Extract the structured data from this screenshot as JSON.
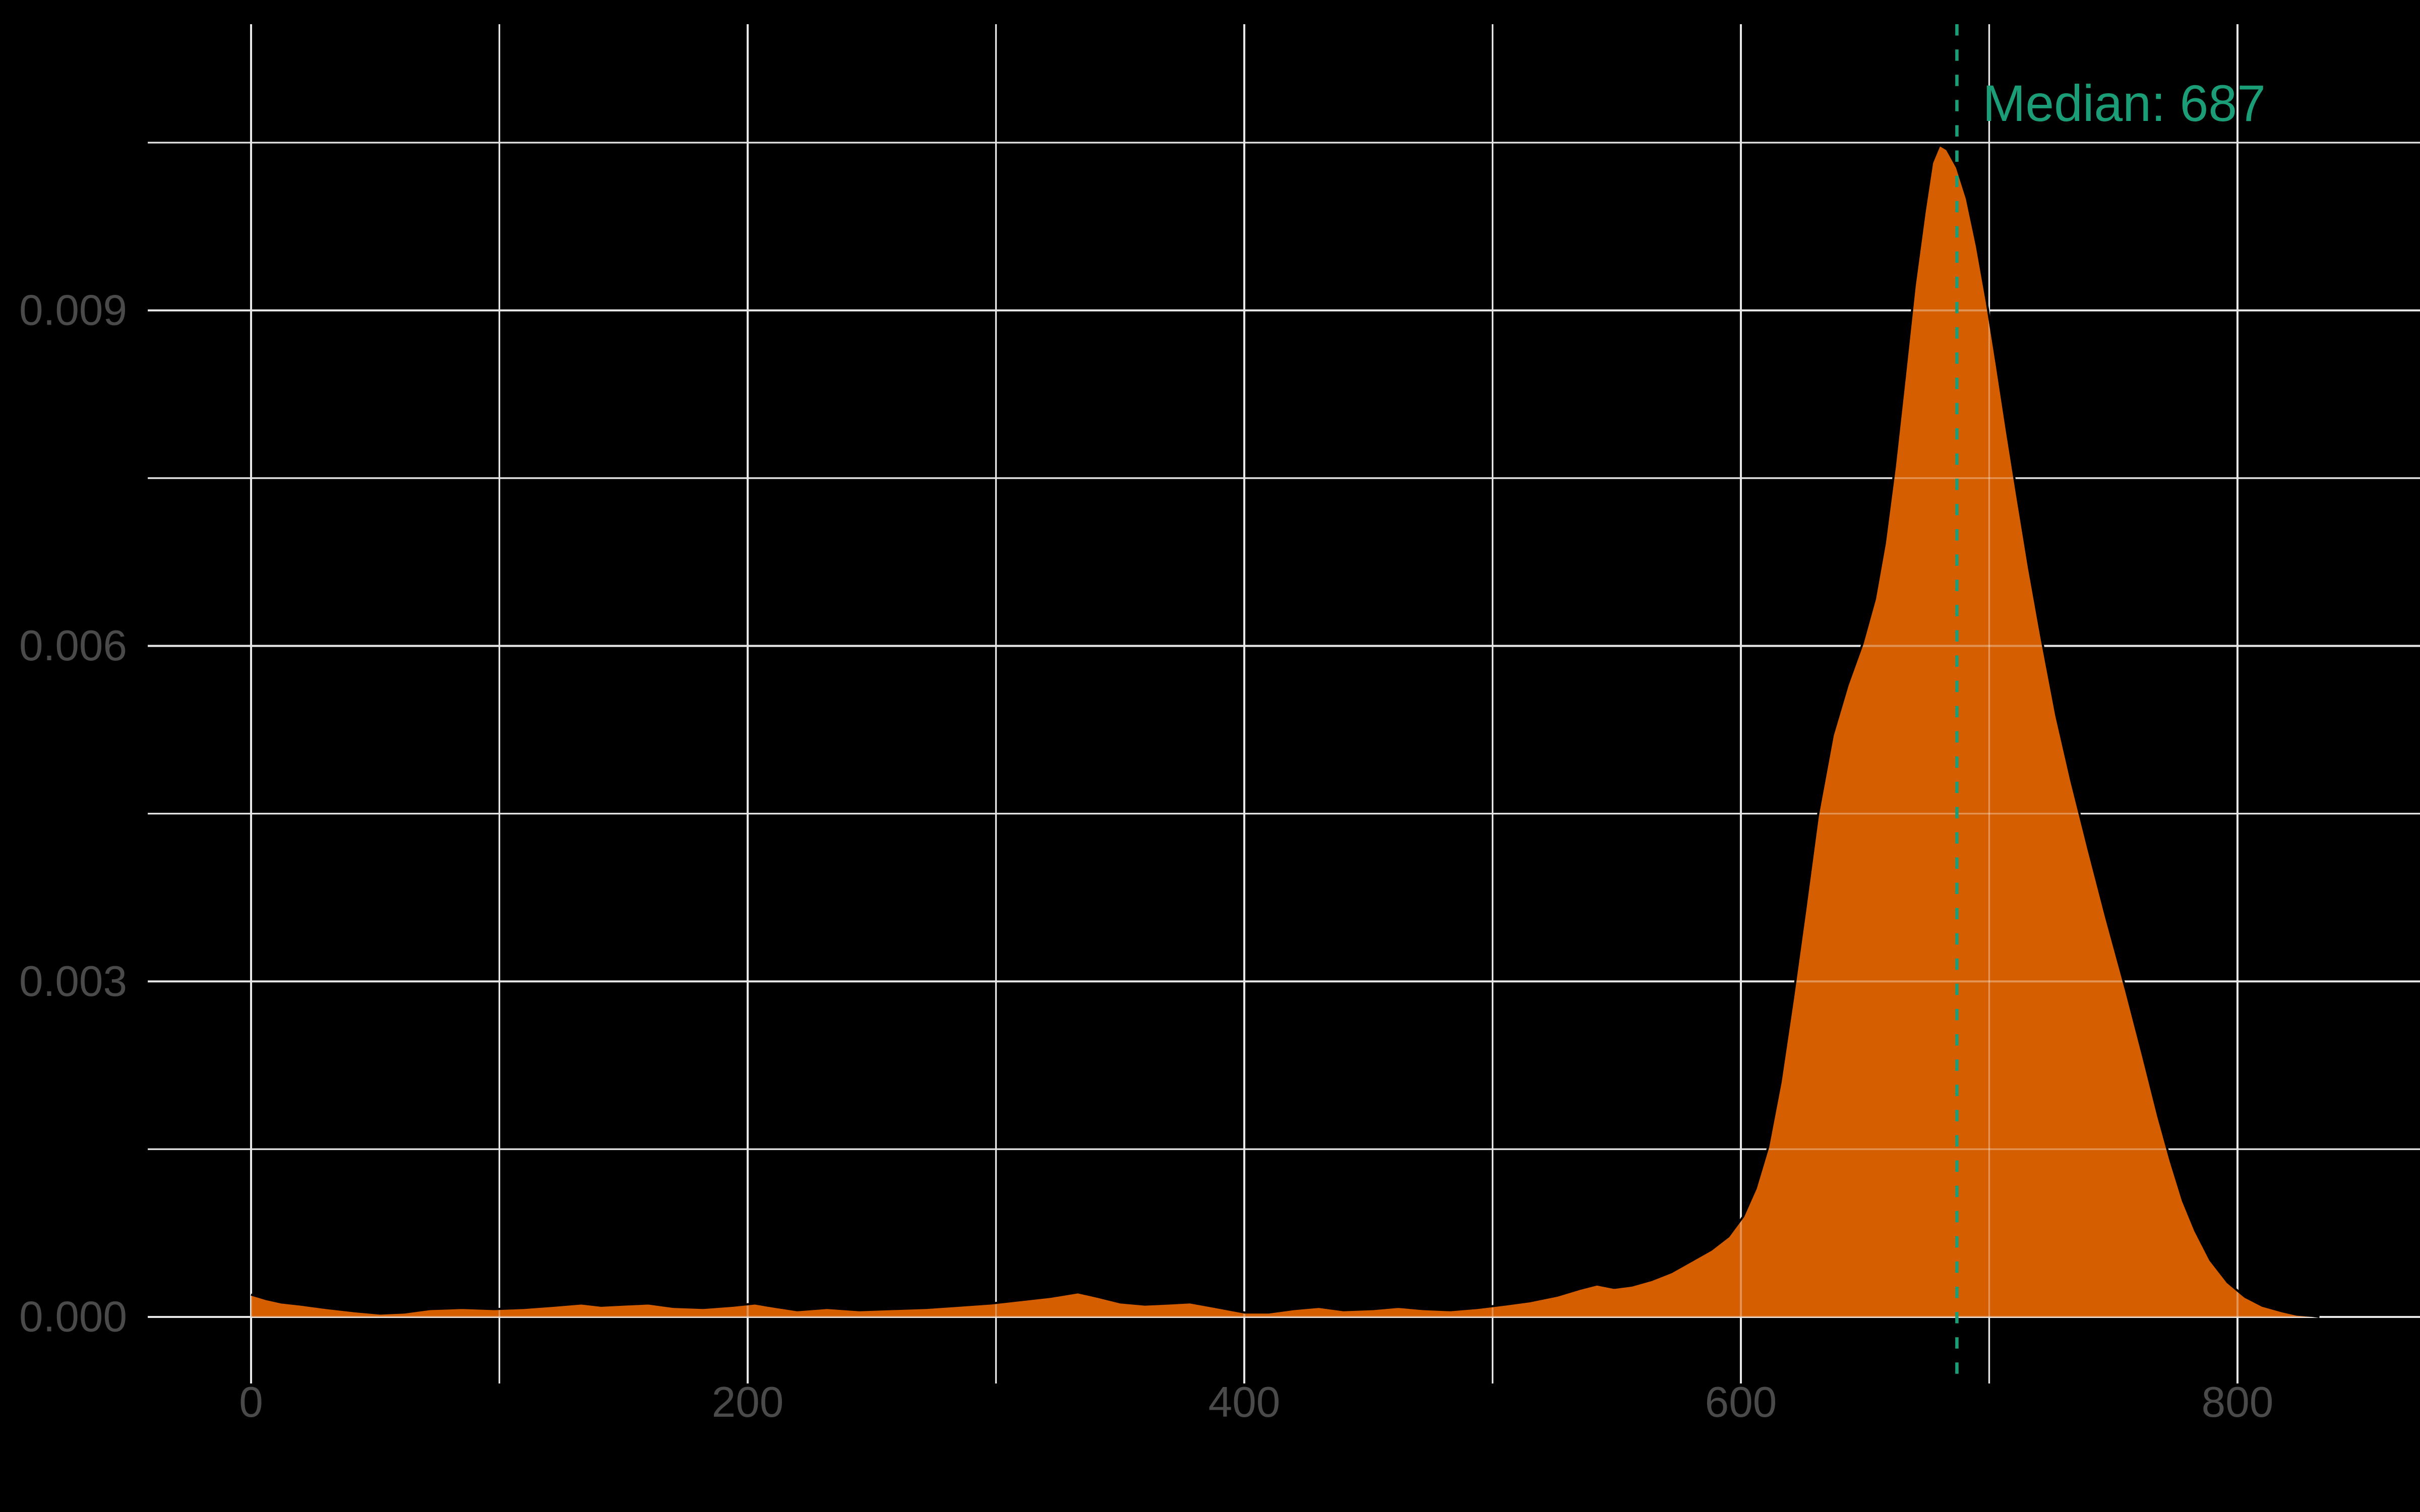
{
  "chart_data": {
    "type": "area",
    "subtype": "density",
    "title": "",
    "xlabel": "",
    "ylabel": "",
    "grid": true,
    "legend": false,
    "x_major_ticks": [
      0,
      200,
      400,
      600,
      800
    ],
    "x_tick_labels": [
      "0",
      "200",
      "400",
      "600",
      "800"
    ],
    "x_minor_gridlines": [
      100,
      300,
      500,
      700
    ],
    "y_major_ticks": [
      0,
      0.003,
      0.006,
      0.009
    ],
    "y_tick_labels": [
      "0.000",
      "0.003",
      "0.006",
      "0.009"
    ],
    "y_minor_gridlines": [
      0.0015,
      0.0045,
      0.0075,
      0.0105
    ],
    "xlim": [
      -41.6,
      873.5
    ],
    "ylim": [
      -0.000595,
      0.011559
    ],
    "annotation": {
      "label": "Median: 687",
      "x": 687
    },
    "series": [
      {
        "name": "density",
        "points": [
          [
            0,
            0.0002
          ],
          [
            6,
            0.00016
          ],
          [
            12,
            0.00013
          ],
          [
            20,
            0.00011
          ],
          [
            30,
            8e-05
          ],
          [
            42,
            5e-05
          ],
          [
            52,
            3e-05
          ],
          [
            62,
            4e-05
          ],
          [
            72,
            7e-05
          ],
          [
            85,
            8e-05
          ],
          [
            98,
            7e-05
          ],
          [
            110,
            8e-05
          ],
          [
            122,
            0.0001
          ],
          [
            133,
            0.00012
          ],
          [
            141,
            0.0001
          ],
          [
            150,
            0.00011
          ],
          [
            160,
            0.00012
          ],
          [
            170,
            9e-05
          ],
          [
            182,
            8e-05
          ],
          [
            194,
            0.0001
          ],
          [
            203,
            0.00012
          ],
          [
            211,
            9e-05
          ],
          [
            220,
            6e-05
          ],
          [
            232,
            8e-05
          ],
          [
            245,
            6e-05
          ],
          [
            258,
            7e-05
          ],
          [
            272,
            8e-05
          ],
          [
            285,
            0.0001
          ],
          [
            298,
            0.00012
          ],
          [
            310,
            0.00015
          ],
          [
            322,
            0.00018
          ],
          [
            333,
            0.00022
          ],
          [
            341,
            0.00018
          ],
          [
            350,
            0.00013
          ],
          [
            360,
            0.00011
          ],
          [
            370,
            0.00012
          ],
          [
            378,
            0.00013
          ],
          [
            388,
            9e-05
          ],
          [
            400,
            4e-05
          ],
          [
            410,
            4e-05
          ],
          [
            420,
            7e-05
          ],
          [
            430,
            9e-05
          ],
          [
            440,
            6e-05
          ],
          [
            452,
            7e-05
          ],
          [
            462,
            9e-05
          ],
          [
            472,
            7e-05
          ],
          [
            483,
            6e-05
          ],
          [
            494,
            8e-05
          ],
          [
            505,
            0.00011
          ],
          [
            515,
            0.00014
          ],
          [
            526,
            0.00019
          ],
          [
            535,
            0.00025
          ],
          [
            542,
            0.00029
          ],
          [
            549,
            0.00026
          ],
          [
            556,
            0.00028
          ],
          [
            564,
            0.00033
          ],
          [
            572,
            0.0004
          ],
          [
            580,
            0.0005
          ],
          [
            588,
            0.0006
          ],
          [
            595,
            0.00072
          ],
          [
            601,
            0.0009
          ],
          [
            606,
            0.00115
          ],
          [
            611,
            0.00152
          ],
          [
            616,
            0.0021
          ],
          [
            621,
            0.00285
          ],
          [
            626,
            0.00365
          ],
          [
            631,
            0.00448
          ],
          [
            637,
            0.0052
          ],
          [
            643,
            0.00565
          ],
          [
            649,
            0.00602
          ],
          [
            654,
            0.00642
          ],
          [
            658,
            0.00692
          ],
          [
            662,
            0.0076
          ],
          [
            666,
            0.0084
          ],
          [
            670,
            0.00922
          ],
          [
            674,
            0.00988
          ],
          [
            677,
            0.01032
          ],
          [
            680,
            0.01048
          ],
          [
            683,
            0.01044
          ],
          [
            687,
            0.01028
          ],
          [
            691,
            0.01
          ],
          [
            695,
            0.00958
          ],
          [
            699,
            0.00908
          ],
          [
            703,
            0.00852
          ],
          [
            707,
            0.00794
          ],
          [
            711,
            0.00738
          ],
          [
            716,
            0.0067
          ],
          [
            721,
            0.00608
          ],
          [
            727,
            0.00538
          ],
          [
            733,
            0.0048
          ],
          [
            740,
            0.00418
          ],
          [
            747,
            0.00358
          ],
          [
            755,
            0.00293
          ],
          [
            762,
            0.00233
          ],
          [
            768,
            0.0018
          ],
          [
            773,
            0.0014
          ],
          [
            778,
            0.00104
          ],
          [
            783,
            0.00077
          ],
          [
            789,
            0.00051
          ],
          [
            796,
            0.00031
          ],
          [
            803,
            0.00018
          ],
          [
            810,
            0.0001
          ],
          [
            818,
            5e-05
          ],
          [
            824,
            2e-05
          ],
          [
            830,
            1e-05
          ],
          [
            833,
            0
          ]
        ]
      }
    ]
  },
  "style": {
    "background_color": "#000000",
    "gridline_color": "#E7E7E7",
    "fill_color": "#D55E00",
    "curve_outline_color": "#000000",
    "accent_color": "#1B9E77",
    "tick_label_color": "#4A4A4A"
  }
}
